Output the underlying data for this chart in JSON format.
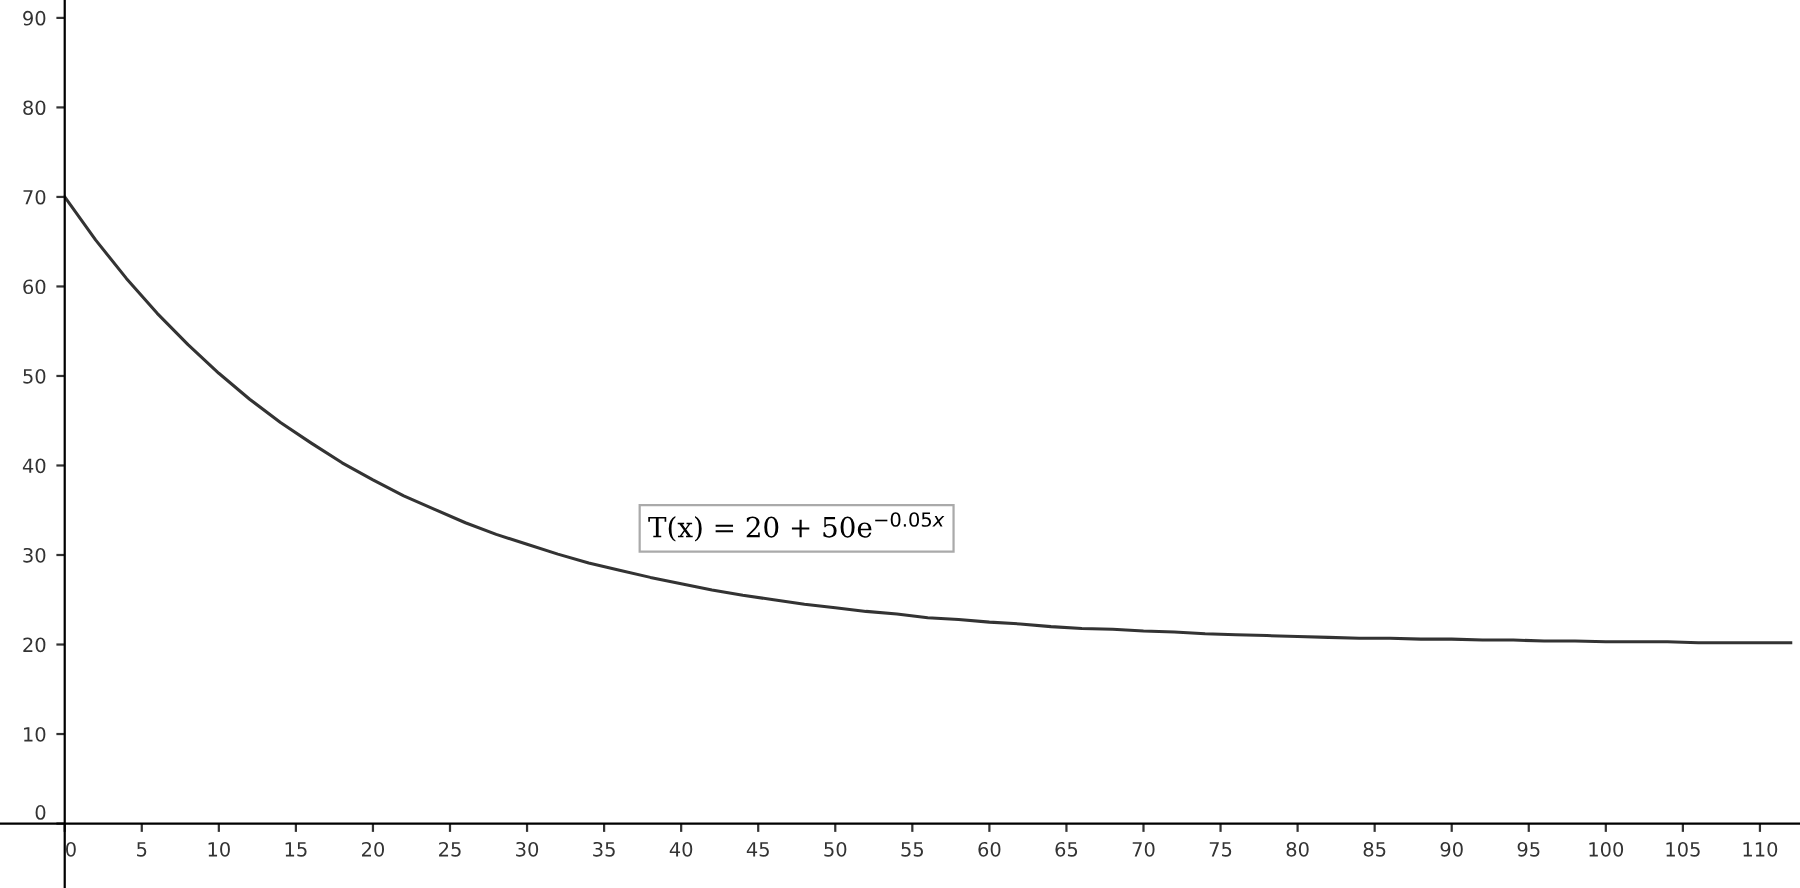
{
  "chart_data": {
    "type": "line",
    "x": [
      0,
      2,
      4,
      6,
      8,
      10,
      12,
      14,
      16,
      18,
      20,
      22,
      24,
      26,
      28,
      30,
      32,
      34,
      36,
      38,
      40,
      42,
      44,
      46,
      48,
      50,
      52,
      54,
      56,
      58,
      60,
      62,
      64,
      66,
      68,
      70,
      72,
      74,
      76,
      78,
      80,
      82,
      84,
      86,
      88,
      90,
      92,
      94,
      96,
      98,
      100,
      102,
      104,
      106,
      108,
      110,
      112
    ],
    "series": [
      {
        "color": "#333333",
        "values": [
          70,
          65.2,
          60.9,
          57.0,
          53.5,
          50.3,
          47.4,
          44.8,
          42.5,
          40.3,
          38.4,
          36.6,
          35.1,
          33.6,
          32.3,
          31.2,
          30.1,
          29.1,
          28.3,
          27.5,
          26.8,
          26.1,
          25.5,
          25.0,
          24.5,
          24.1,
          23.7,
          23.4,
          23.0,
          22.8,
          22.5,
          22.3,
          22.0,
          21.8,
          21.7,
          21.5,
          21.4,
          21.2,
          21.1,
          21.0,
          20.9,
          20.8,
          20.7,
          20.7,
          20.6,
          20.6,
          20.5,
          20.5,
          20.4,
          20.4,
          20.3,
          20.3,
          20.3,
          20.2,
          20.2,
          20.2,
          20.2
        ]
      }
    ],
    "annotations": [
      "T(x) = 20 + 50e$^{−0.05x}$"
    ],
    "xlim": [
      -4.2,
      112.6
    ],
    "ylim": [
      -7.2,
      92
    ],
    "xticks": [
      0,
      5,
      10,
      15,
      20,
      25,
      30,
      35,
      40,
      45,
      50,
      55,
      60,
      65,
      70,
      75,
      80,
      85,
      90,
      95,
      100,
      105,
      110
    ],
    "yticks": [
      0,
      10,
      20,
      30,
      40,
      50,
      60,
      70,
      80,
      90
    ],
    "grid": false,
    "legend": false,
    "marker": "none",
    "line_style": "solid"
  }
}
